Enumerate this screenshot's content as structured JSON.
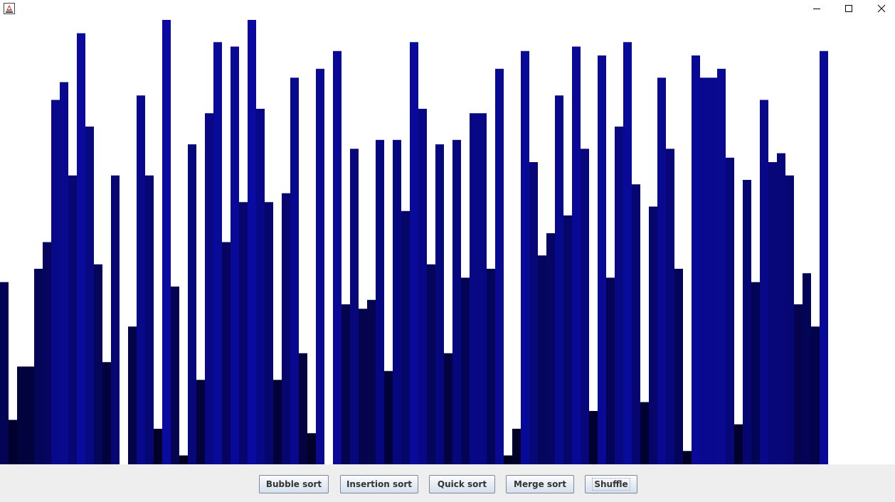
{
  "window": {
    "icons": {
      "app": "java-app-icon",
      "minimize": "minimize-icon",
      "maximize": "maximize-icon",
      "close": "close-icon"
    }
  },
  "buttons": {
    "bubble": "Bubble sort",
    "insertion": "Insertion sort",
    "quick": "Quick sort",
    "merge": "Merge sort",
    "shuffle": "Shuffle"
  },
  "bars": {
    "max_value": 100,
    "values": [
      41,
      10,
      22,
      22,
      44,
      50,
      82,
      86,
      65,
      97,
      76,
      45,
      23,
      65,
      0,
      31,
      83,
      65,
      8,
      100,
      40,
      2,
      72,
      19,
      79,
      95,
      50,
      94,
      59,
      100,
      80,
      59,
      19,
      61,
      87,
      25,
      7,
      89,
      0,
      93,
      36,
      71,
      35,
      37,
      73,
      21,
      73,
      57,
      95,
      80,
      45,
      72,
      25,
      73,
      42,
      79,
      79,
      44,
      89,
      2,
      8,
      93,
      68,
      47,
      52,
      83,
      56,
      94,
      71,
      12,
      92,
      42,
      76,
      95,
      63,
      14,
      58,
      87,
      71,
      44,
      3,
      92,
      87,
      87,
      89,
      69,
      9,
      64,
      41,
      82,
      68,
      70,
      65,
      36,
      43,
      31,
      93
    ],
    "colors": {
      "dark": "#000020",
      "bright": "#0a0aa0"
    }
  }
}
